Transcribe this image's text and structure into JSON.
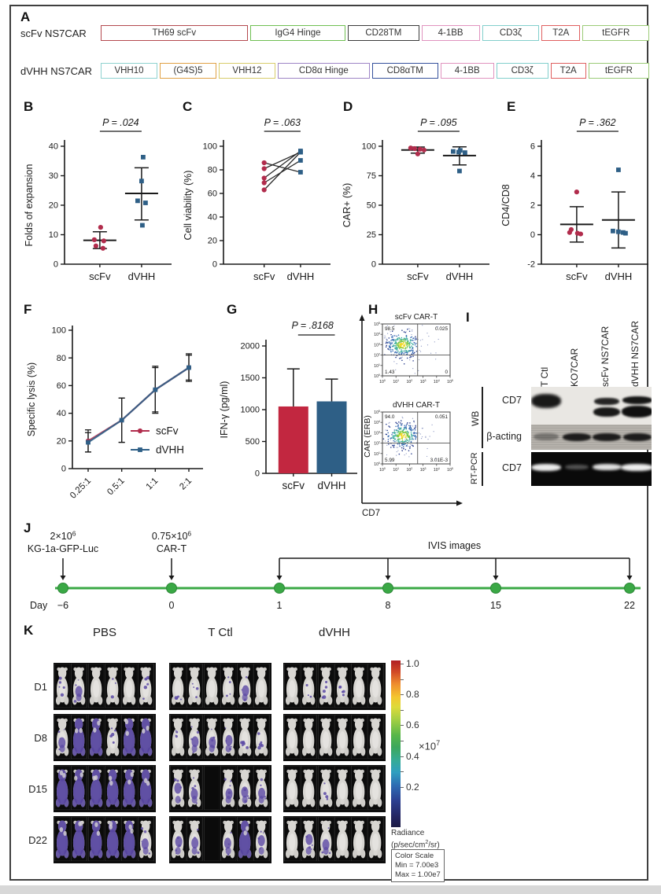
{
  "panels": {
    "A": "A",
    "B": "B",
    "C": "C",
    "D": "D",
    "E": "E",
    "F": "F",
    "G": "G",
    "H": "H",
    "I": "I",
    "J": "J",
    "K": "K"
  },
  "colors": {
    "red": "#b12c4c",
    "blue": "#2e5f86",
    "bar_red": "#c22740",
    "green": "#3aa845",
    "purple": "#5b49a4"
  },
  "panelA": {
    "rows": [
      {
        "label": "scFv NS7CAR",
        "segments": [
          {
            "text": "TH69 scFv",
            "border": "#b4494f",
            "grow": 3.05
          },
          {
            "text": "IgG4 Hinge",
            "border": "#6fbf52",
            "grow": 1.45
          },
          {
            "text": "CD28TM",
            "border": "#3b3b3b",
            "grow": 1.0
          },
          {
            "text": "4-1BB",
            "border": "#e093bf",
            "grow": 0.95
          },
          {
            "text": "CD3ζ",
            "border": "#82cfcc",
            "grow": 1.0
          },
          {
            "text": "T2A",
            "border": "#df5f5f",
            "grow": 0.62
          },
          {
            "text": "tEGFR",
            "border": "#9bcb77",
            "grow": 1.12
          }
        ]
      },
      {
        "label": "dVHH NS7CAR",
        "segments": [
          {
            "text": "VHH10",
            "border": "#8fd2d0",
            "grow": 0.92
          },
          {
            "text": "(G4S)5",
            "border": "#e0a145",
            "grow": 0.92
          },
          {
            "text": "VHH12",
            "border": "#d8cc6b",
            "grow": 0.92
          },
          {
            "text": "CD8α Hinge",
            "border": "#9e85c6",
            "grow": 1.45
          },
          {
            "text": "CD8αTM",
            "border": "#35519c",
            "grow": 1.0
          },
          {
            "text": "4-1BB",
            "border": "#e093bf",
            "grow": 0.95
          },
          {
            "text": "CD3ζ",
            "border": "#82cfcc",
            "grow": 1.0
          },
          {
            "text": "T2A",
            "border": "#df5f5f",
            "grow": 0.62
          },
          {
            "text": "tEGFR",
            "border": "#9bcb77",
            "grow": 1.12
          }
        ]
      }
    ]
  },
  "chart_data": [
    {
      "id": "B",
      "type": "scatter",
      "ylabel": "Folds of expansion",
      "ylim": [
        0,
        40
      ],
      "yticks": [
        0,
        10,
        20,
        30,
        40
      ],
      "categories": [
        "scFv",
        "dVHH"
      ],
      "p_label": "P = .024",
      "series": [
        {
          "name": "scFv",
          "color": "#b12c4c",
          "marker": "circle",
          "points": [
            12.5,
            8.3,
            7.9,
            6.2,
            5.4
          ],
          "mean": 8.1,
          "err_lo": 5.3,
          "err_hi": 11.0
        },
        {
          "name": "dVHH",
          "color": "#2e5f86",
          "marker": "square",
          "points": [
            36.3,
            28.2,
            21.5,
            20.8,
            13.2
          ],
          "mean": 24.0,
          "err_lo": 15.0,
          "err_hi": 32.7
        }
      ]
    },
    {
      "id": "C",
      "type": "paired",
      "ylabel": "Cell viability (%)",
      "ylim": [
        0,
        100
      ],
      "yticks": [
        0,
        20,
        40,
        60,
        80,
        100
      ],
      "categories": [
        "scFv",
        "dVHH"
      ],
      "p_label": "P = .063",
      "pairs": [
        [
          86,
          78
        ],
        [
          81,
          95
        ],
        [
          73,
          96
        ],
        [
          69,
          88
        ],
        [
          63,
          95
        ]
      ],
      "colors": [
        "#b12c4c",
        "#2e5f86"
      ]
    },
    {
      "id": "D",
      "type": "scatter",
      "ylabel": "CAR+ (%)",
      "ylim": [
        0,
        100
      ],
      "yticks": [
        0,
        25,
        50,
        75,
        100
      ],
      "categories": [
        "scFv",
        "dVHH"
      ],
      "p_label": "P = .095",
      "series": [
        {
          "name": "scFv",
          "color": "#b12c4c",
          "marker": "circle",
          "points": [
            98.5,
            98.0,
            97.5,
            96.8,
            93.5
          ],
          "mean": 96.8,
          "err_lo": 94.2,
          "err_hi": 99.3
        },
        {
          "name": "dVHH",
          "color": "#2e5f86",
          "marker": "square",
          "points": [
            96.5,
            95.6,
            95.0,
            94.6,
            79.0
          ],
          "mean": 92.1,
          "err_lo": 84.2,
          "err_hi": 99.5
        }
      ]
    },
    {
      "id": "E",
      "type": "scatter",
      "ylabel": "CD4/CD8",
      "ylim": [
        -2,
        6
      ],
      "yticks": [
        -2,
        0,
        2,
        4,
        6
      ],
      "categories": [
        "scFv",
        "dVHH"
      ],
      "p_label": "P = .362",
      "series": [
        {
          "name": "scFv",
          "color": "#b12c4c",
          "marker": "circle",
          "points": [
            2.9,
            0.35,
            0.15,
            0.1,
            0.05
          ],
          "mean": 0.7,
          "err_lo": -0.5,
          "err_hi": 1.9
        },
        {
          "name": "dVHH",
          "color": "#2e5f86",
          "marker": "square",
          "points": [
            4.4,
            0.25,
            0.2,
            0.15,
            0.1
          ],
          "mean": 1.0,
          "err_lo": -0.9,
          "err_hi": 2.9
        }
      ]
    },
    {
      "id": "F",
      "type": "line",
      "ylabel": "Specific lysis (%)",
      "ylim": [
        0,
        100
      ],
      "yticks": [
        0,
        20,
        40,
        60,
        80,
        100
      ],
      "x": [
        "0.25:1",
        "0.5:1",
        "1:1",
        "2:1"
      ],
      "series": [
        {
          "name": "scFv",
          "color": "#b12c4c",
          "marker": "circle",
          "values": [
            20,
            35,
            57,
            73
          ],
          "err": [
            8,
            16,
            17,
            9
          ]
        },
        {
          "name": "dVHH",
          "color": "#2e5f86",
          "marker": "square",
          "values": [
            19,
            35,
            57,
            73
          ],
          "err": [
            7,
            16,
            16,
            10
          ]
        }
      ],
      "legend_position": "inside-right"
    },
    {
      "id": "G",
      "type": "bar",
      "ylabel": "IFN-γ (pg/ml)",
      "ylim": [
        0,
        2000
      ],
      "yticks": [
        0,
        500,
        1000,
        1500,
        2000
      ],
      "categories": [
        "scFv",
        "dVHH"
      ],
      "values": [
        1050,
        1130
      ],
      "err_hi": [
        590,
        350
      ],
      "colors": [
        "#c22740",
        "#2e5f86"
      ],
      "p_label": "P = .8168"
    }
  ],
  "flow": {
    "xlabel": "CD7",
    "ylabel": "CAR (ERB)",
    "ticks": [
      "10^0",
      "10^1",
      "10^2",
      "10^3",
      "10^4",
      "10^5"
    ],
    "plots": [
      {
        "title": "scFv CAR-T",
        "ul": "98.5",
        "ur": "0.025",
        "ll": "1.43",
        "lr": "0"
      },
      {
        "title": "dVHH CAR-T",
        "ul": "94.0",
        "ur": "0.051",
        "ll": "5.99",
        "lr": "3.01E-3"
      }
    ]
  },
  "blot": {
    "lanes": [
      "T Ctl",
      "KO7CAR",
      "scFv NS7CAR",
      "dVHH NS7CAR"
    ],
    "groups": [
      {
        "name": "WB",
        "rows": [
          {
            "label": "CD7",
            "bands": [
              "strong",
              "none",
              "double",
              "double"
            ]
          },
          {
            "label": "β-acting",
            "bands": [
              "faint",
              "strong",
              "strong",
              "strong"
            ]
          }
        ]
      },
      {
        "name": "RT-PCR",
        "rows": [
          {
            "label": "CD7",
            "bands": [
              "strong",
              "faint",
              "strong",
              "strong"
            ]
          }
        ]
      }
    ]
  },
  "timeline": {
    "axis_label": "Day",
    "days": [
      "−6",
      "0",
      "1",
      "8",
      "15",
      "22"
    ],
    "events": [
      {
        "day_index": 0,
        "lines": [
          "2×10^6",
          "KG-1a-GFP-Luc"
        ]
      },
      {
        "day_index": 1,
        "lines": [
          "0.75×10^6",
          "CAR-T"
        ]
      }
    ],
    "bracket": {
      "label": "IVIS images",
      "from_index": 2,
      "to_index": 5,
      "arrow_indices": [
        2,
        3,
        4,
        5
      ]
    }
  },
  "ivis": {
    "groups": [
      "PBS",
      "T Ctl",
      "dVHH"
    ],
    "days": [
      "D1",
      "D8",
      "D15",
      "D22"
    ],
    "intensity": {
      "PBS": [
        [
          1,
          2,
          0,
          1,
          0,
          1
        ],
        [
          2,
          3,
          3,
          1,
          3,
          3
        ],
        [
          3,
          3,
          3,
          3,
          3,
          3
        ],
        [
          3,
          3,
          3,
          3,
          3,
          2
        ]
      ],
      "T Ctl": [
        [
          1,
          1,
          0,
          1,
          2,
          0
        ],
        [
          1,
          2,
          2,
          2,
          1,
          1
        ],
        [
          2,
          2,
          -1,
          2,
          2,
          2
        ],
        [
          2,
          2,
          -1,
          2,
          3,
          2
        ]
      ],
      "dVHH": [
        [
          0,
          1,
          1,
          1,
          0,
          0
        ],
        [
          0,
          0,
          0,
          0,
          0,
          0
        ],
        [
          0,
          0,
          1,
          0,
          0,
          0
        ],
        [
          0,
          2,
          2,
          0,
          0,
          0
        ]
      ]
    },
    "colorbar": {
      "ticks": [
        "1.0",
        "0.8",
        "0.6",
        "0.4",
        "0.2"
      ],
      "multiplier": "×10^7",
      "unit_lines": [
        "Radiance",
        "(p/sec/cm^2/sr)"
      ],
      "scale_box": [
        "Color Scale",
        "Min = 7.00e3",
        "Max = 1.00e7"
      ]
    }
  }
}
